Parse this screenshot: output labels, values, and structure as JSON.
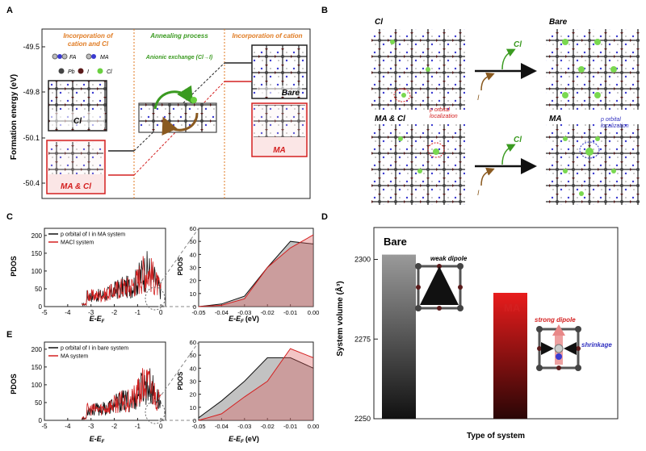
{
  "panels": {
    "a": "A",
    "b": "B",
    "c": "C",
    "d": "D",
    "e": "E"
  },
  "panel_a": {
    "y_label": "Formation energy (eV)",
    "y_ticks": [
      "-49.5",
      "-49.8",
      "-50.1",
      "-50.4"
    ],
    "section_left": [
      "Incorporation of",
      "cation and Cl"
    ],
    "section_mid": "Annealing process",
    "section_mid_sub": "Anionic exchange (Cl→I)",
    "section_right": "Incorporation of cation",
    "legend_fa": "FA",
    "legend_ma": "MA",
    "legend_pb": "Pb",
    "legend_i": "I",
    "legend_cl": "Cl",
    "label_cl": "Cl",
    "label_ma_cl": "MA & Cl",
    "label_bare": "Bare",
    "label_ma": "MA",
    "colors": {
      "black": "#222222",
      "red": "#d42020",
      "orange": "#e07a20",
      "green": "#3a9a20"
    }
  },
  "panel_b": {
    "label_cl": "Cl",
    "label_bare": "Bare",
    "label_ma_cl": "MA & Cl",
    "label_ma": "MA",
    "arrow_cl_top": "Cl",
    "arrow_i_top": "I",
    "arrow_cl_bottom": "Cl",
    "arrow_i_bottom": "I",
    "note1": [
      "p orbital",
      "localization"
    ],
    "note2": [
      "p orbital",
      "localization"
    ]
  },
  "panel_c": {
    "y_label": "PDOS",
    "x_label": "E-E",
    "x_sub": "F",
    "legend_1": "p orbital of I in MA system",
    "legend_2": "MACl system",
    "x_ticks_main": [
      "-5",
      "-4",
      "-3",
      "-2",
      "-1",
      "0"
    ],
    "y_ticks_main": [
      "0",
      "50",
      "100",
      "150",
      "200"
    ],
    "x_ticks_zoom": [
      "-0.05",
      "-0.04",
      "-0.03",
      "-0.02",
      "-0.01",
      "0.00"
    ],
    "y_ticks_zoom": [
      "0",
      "10",
      "20",
      "30",
      "40",
      "50",
      "60"
    ],
    "x_unit": "(eV)"
  },
  "panel_e": {
    "y_label": "PDOS",
    "x_label": "E-E",
    "x_sub": "F",
    "legend_1": "p orbital of I in bare system",
    "legend_2": "MA system",
    "x_ticks_main": [
      "-5",
      "-4",
      "-3",
      "-2",
      "-1",
      "0"
    ],
    "y_ticks_main": [
      "0",
      "50",
      "100",
      "150",
      "200"
    ],
    "x_ticks_zoom": [
      "-0.05",
      "-0.04",
      "-0.03",
      "-0.02",
      "-0.01",
      "0.00"
    ],
    "y_ticks_zoom": [
      "0",
      "10",
      "20",
      "30",
      "40",
      "50",
      "60"
    ],
    "x_unit": "(eV)"
  },
  "panel_d": {
    "y_label": "System volume (Å³)",
    "x_label": "Type of system",
    "y_ticks": [
      "2300",
      "2275",
      "2250"
    ],
    "bar_bare": "Bare",
    "bar_ma": "MA",
    "note_weak": "weak dipole",
    "note_strong": "strong dipole",
    "note_shrink": "shrinkage"
  },
  "chart_data": [
    {
      "type": "bar",
      "panel": "D",
      "categories": [
        "Bare",
        "MA"
      ],
      "values": [
        2301.5,
        2289.5
      ],
      "xlabel": "Type of system",
      "ylabel": "System volume (Å³)",
      "ylim": [
        2250,
        2310
      ]
    },
    {
      "type": "line",
      "panel": "C zoom",
      "xlim": [
        -0.05,
        0.0
      ],
      "ylim": [
        0,
        60
      ],
      "series": [
        {
          "name": "p orbital of I in MA system",
          "x": [
            -0.05,
            -0.04,
            -0.03,
            -0.02,
            -0.01,
            0.0
          ],
          "y": [
            0,
            2,
            8,
            30,
            50,
            48
          ]
        },
        {
          "name": "MACl system",
          "x": [
            -0.05,
            -0.04,
            -0.03,
            -0.02,
            -0.01,
            0.0
          ],
          "y": [
            0,
            1,
            6,
            30,
            45,
            55
          ]
        }
      ]
    },
    {
      "type": "line",
      "panel": "E zoom",
      "xlim": [
        -0.05,
        0.0
      ],
      "ylim": [
        0,
        60
      ],
      "series": [
        {
          "name": "p orbital of I in bare system",
          "x": [
            -0.05,
            -0.04,
            -0.03,
            -0.02,
            -0.01,
            0.0
          ],
          "y": [
            2,
            15,
            30,
            48,
            48,
            40
          ]
        },
        {
          "name": "MA system",
          "x": [
            -0.05,
            -0.04,
            -0.03,
            -0.02,
            -0.01,
            0.0
          ],
          "y": [
            0,
            5,
            18,
            30,
            55,
            48
          ]
        }
      ]
    }
  ]
}
